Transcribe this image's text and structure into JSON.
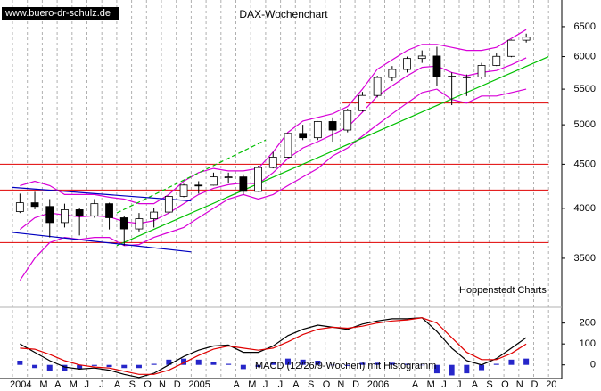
{
  "chart_data": {
    "type": "candlestick",
    "source": "www.buero-dr-schulz.de",
    "title": "DAX-Wochenchart",
    "credit": "Hoppenstedt Charts",
    "categories": [
      "2004",
      null,
      "M",
      "A",
      "M",
      "J",
      "J",
      "A",
      "S",
      "O",
      "N",
      "D",
      "2005",
      null,
      null,
      "A",
      "M",
      "J",
      "J",
      "A",
      "S",
      "O",
      "N",
      "D",
      "2006",
      null,
      null,
      "A",
      "M",
      "J",
      "J",
      "A",
      "S",
      "O",
      "N",
      "D",
      "20"
    ],
    "open": [
      3965,
      4060,
      4020,
      3850,
      3985,
      3920,
      4050,
      3900,
      3785,
      3890,
      3960,
      4130,
      4256,
      4255,
      4350,
      4350,
      4185,
      4460,
      4586,
      4886,
      4830,
      5044,
      4930,
      5193,
      5408,
      5674,
      5797,
      5970,
      6009,
      5693,
      5683,
      5682,
      5860,
      6004,
      6269,
      null,
      null
    ],
    "high": [
      4160,
      4180,
      4100,
      4050,
      4000,
      4100,
      4060,
      3920,
      3950,
      4000,
      4150,
      4270,
      4300,
      4400,
      4400,
      4380,
      4480,
      4650,
      4890,
      5000,
      5050,
      5100,
      5220,
      5460,
      5700,
      5850,
      6000,
      6100,
      6160,
      5750,
      5720,
      5900,
      6050,
      6280,
      6380,
      null,
      null
    ],
    "low": [
      3950,
      3990,
      3700,
      3800,
      3720,
      3900,
      3780,
      3620,
      3760,
      3800,
      3940,
      4120,
      4160,
      4250,
      4280,
      4150,
      4180,
      4450,
      4580,
      4800,
      4800,
      4780,
      4900,
      5180,
      5380,
      5620,
      5750,
      5900,
      5550,
      5270,
      5400,
      5650,
      5850,
      5990,
      6230,
      null,
      null
    ],
    "close": [
      4060,
      4020,
      3850,
      3985,
      3920,
      4050,
      3900,
      3785,
      3890,
      3960,
      4130,
      4256,
      4255,
      4350,
      4350,
      4185,
      4460,
      4586,
      4886,
      4830,
      5044,
      4930,
      5193,
      5408,
      5674,
      5797,
      5970,
      6009,
      5693,
      5683,
      5682,
      5860,
      6004,
      6269,
      6320,
      null,
      null
    ],
    "candle_colors": {
      "up": "#ffffff",
      "down": "#000000",
      "outline": "#000000"
    },
    "bands": [
      {
        "color": "#d800d8",
        "values": [
          4250,
          4300,
          4250,
          4150,
          4150,
          4150,
          4120,
          4100,
          4050,
          4050,
          4150,
          4300,
          4400,
          4450,
          4420,
          4420,
          4450,
          4650,
          4900,
          5050,
          5100,
          5150,
          5250,
          5500,
          5800,
          5950,
          6100,
          6200,
          6200,
          6150,
          6100,
          6100,
          6150,
          6300,
          6450,
          null,
          null
        ]
      },
      {
        "color": "#d800d8",
        "values": [
          3780,
          3900,
          3950,
          3930,
          3910,
          3920,
          3910,
          3860,
          3840,
          3870,
          3950,
          4050,
          4150,
          4220,
          4260,
          4280,
          4270,
          4400,
          4570,
          4700,
          4780,
          4870,
          4970,
          5170,
          5400,
          5550,
          5700,
          5830,
          5850,
          5750,
          5700,
          5750,
          5780,
          5870,
          5980,
          null,
          null
        ]
      },
      {
        "color": "#d800d8",
        "values": [
          3300,
          3500,
          3650,
          3700,
          3680,
          3700,
          3700,
          3620,
          3630,
          3700,
          3750,
          3800,
          3900,
          4000,
          4100,
          4150,
          4100,
          4150,
          4250,
          4350,
          4450,
          4600,
          4700,
          4850,
          5000,
          5150,
          5300,
          5450,
          5500,
          5350,
          5300,
          5400,
          5400,
          5450,
          5500,
          null,
          null
        ]
      }
    ],
    "trendlines": [
      {
        "color": "#00c000",
        "dashed": false,
        "x": [
          "2004-08",
          "2007-01"
        ],
        "values": [
          3620,
          6000
        ]
      },
      {
        "color": "#00c000",
        "dashed": true,
        "x": [
          "2004-08",
          "2005-06"
        ],
        "values": [
          3950,
          4800
        ]
      },
      {
        "color": "#0000c0",
        "dashed": false,
        "x": [
          "2004-01",
          "2005-01"
        ],
        "values": [
          4230,
          4080
        ]
      },
      {
        "color": "#0000c0",
        "dashed": false,
        "x": [
          "2004-01",
          "2005-01"
        ],
        "values": [
          3750,
          3560
        ]
      }
    ],
    "levels": [
      {
        "color": "#e00000",
        "value": 3650,
        "x": [
          "2004-01",
          "2007-01"
        ]
      },
      {
        "color": "#e00000",
        "value": 4200,
        "x": [
          "2004-01",
          "2007-01"
        ]
      },
      {
        "color": "#e00000",
        "value": 4500,
        "x": [
          "2004-01",
          "2007-01"
        ]
      },
      {
        "color": "#e00000",
        "value": 5300,
        "x": [
          "2005-12",
          "2007-01"
        ]
      }
    ],
    "ylim": [
      3070,
      6980
    ],
    "log_scale": true,
    "yticks": [
      3500,
      4000,
      4500,
      5000,
      5500,
      6000,
      6500
    ],
    "macd": {
      "label": "MACD (12/26/9-Wochen) mit Histogramm",
      "ylim": [
        -65,
        275
      ],
      "yticks": [
        0,
        100,
        200
      ],
      "series": [
        {
          "color": "#000000",
          "values": [
            100,
            60,
            20,
            -10,
            -20,
            -15,
            -25,
            -45,
            -60,
            -40,
            0,
            40,
            70,
            90,
            95,
            60,
            60,
            90,
            140,
            170,
            190,
            180,
            170,
            195,
            210,
            220,
            220,
            225,
            160,
            80,
            20,
            0,
            30,
            80,
            130,
            null,
            null
          ]
        },
        {
          "color": "#e00000",
          "values": [
            80,
            75,
            50,
            20,
            0,
            -10,
            -15,
            -30,
            -45,
            -45,
            -25,
            10,
            45,
            75,
            90,
            80,
            70,
            80,
            110,
            145,
            170,
            180,
            175,
            185,
            200,
            210,
            215,
            225,
            200,
            130,
            60,
            25,
            25,
            55,
            100,
            null,
            null
          ]
        }
      ],
      "histogram": {
        "color": "#0000c0",
        "values": [
          20,
          -15,
          -30,
          -30,
          -20,
          -5,
          -10,
          -15,
          -15,
          5,
          25,
          30,
          25,
          15,
          5,
          -20,
          -10,
          10,
          30,
          25,
          20,
          0,
          -5,
          10,
          10,
          10,
          5,
          0,
          -40,
          -50,
          -40,
          -25,
          5,
          25,
          30,
          null,
          null
        ]
      }
    },
    "grid_color": "#b0b0b0"
  }
}
